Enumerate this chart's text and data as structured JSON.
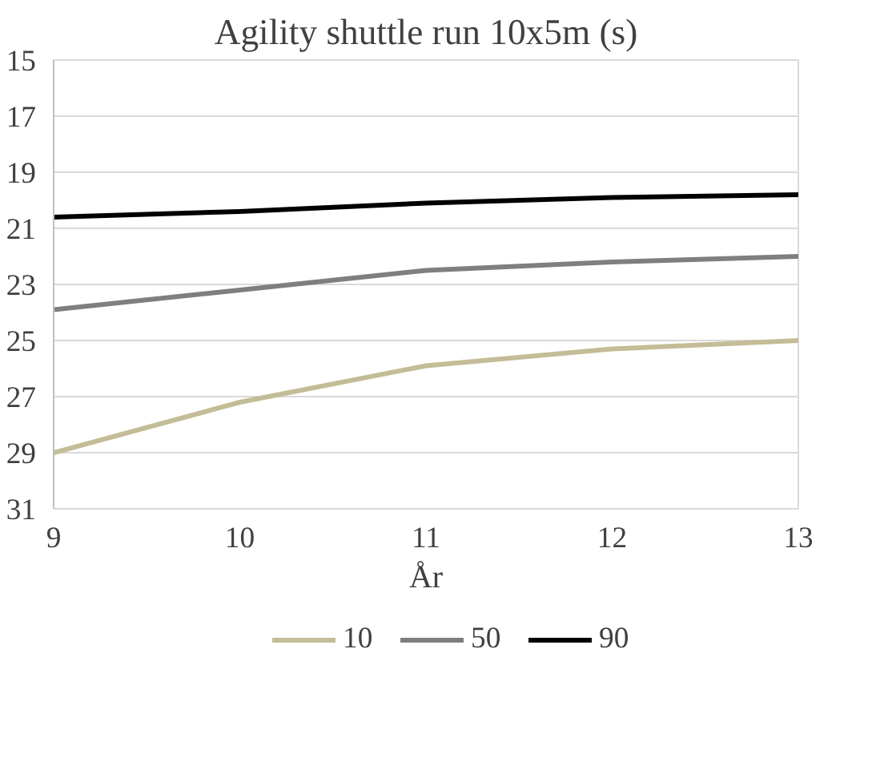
{
  "chart_data": {
    "type": "line",
    "title": "Agility shuttle run 10x5m (s)",
    "xlabel": "År",
    "x": [
      9,
      10,
      11,
      12,
      13
    ],
    "series": [
      {
        "name": "10",
        "color": "#c4bc96",
        "values": [
          29.0,
          27.2,
          25.9,
          25.3,
          25.0
        ]
      },
      {
        "name": "50",
        "color": "#7f7f7f",
        "values": [
          23.9,
          23.2,
          22.5,
          22.2,
          22.0
        ]
      },
      {
        "name": "90",
        "color": "#000000",
        "values": [
          20.6,
          20.4,
          20.1,
          19.9,
          19.8
        ]
      }
    ],
    "xlim": [
      9,
      13
    ],
    "ylim": [
      31,
      15
    ],
    "xticks": [
      9,
      10,
      11,
      12,
      13
    ],
    "yticks": [
      15,
      17,
      19,
      21,
      23,
      25,
      27,
      29,
      31
    ],
    "grid": "y",
    "legend": "bottom",
    "line_style": "solid"
  }
}
